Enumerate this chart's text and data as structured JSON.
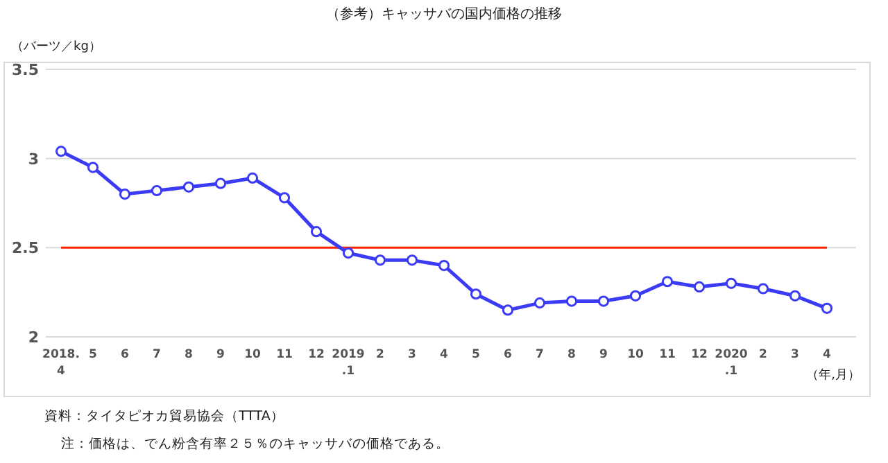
{
  "chart_data": {
    "type": "line",
    "title": "（参考）キャッサバの国内価格の推移",
    "ylabel": "（バーツ／kg）",
    "xlabel": "（年,月）",
    "categories": [
      "2018.\n4",
      "5",
      "6",
      "7",
      "8",
      "9",
      "10",
      "11",
      "12",
      "2019\n.1",
      "2",
      "3",
      "4",
      "5",
      "6",
      "7",
      "8",
      "9",
      "10",
      "11",
      "12",
      "2020\n.1",
      "2",
      "3",
      "4"
    ],
    "series": [
      {
        "color": "#3b3bf5",
        "values": [
          3.04,
          2.95,
          2.8,
          2.82,
          2.84,
          2.86,
          2.89,
          2.78,
          2.59,
          2.47,
          2.43,
          2.43,
          2.4,
          2.24,
          2.15,
          2.19,
          2.2,
          2.2,
          2.23,
          2.31,
          2.28,
          2.3,
          2.27,
          2.23,
          2.16
        ]
      }
    ],
    "ylim": [
      2,
      3.5
    ],
    "yticks": [
      2,
      {
        "value": 2.5,
        "label": "2.5"
      },
      3,
      {
        "value": 3.5,
        "label": "3.5"
      }
    ],
    "grid": "y",
    "marker": "circle",
    "line_style": "solid",
    "ref_lines": [
      {
        "axis": "y",
        "value": 2.5,
        "color": "#ff2200"
      }
    ],
    "annotations": [
      "資料：タイタピオカ貿易協会（TTTA）",
      "注：価格は、でん粉含有率２５％のキャッサバの価格である。"
    ]
  }
}
